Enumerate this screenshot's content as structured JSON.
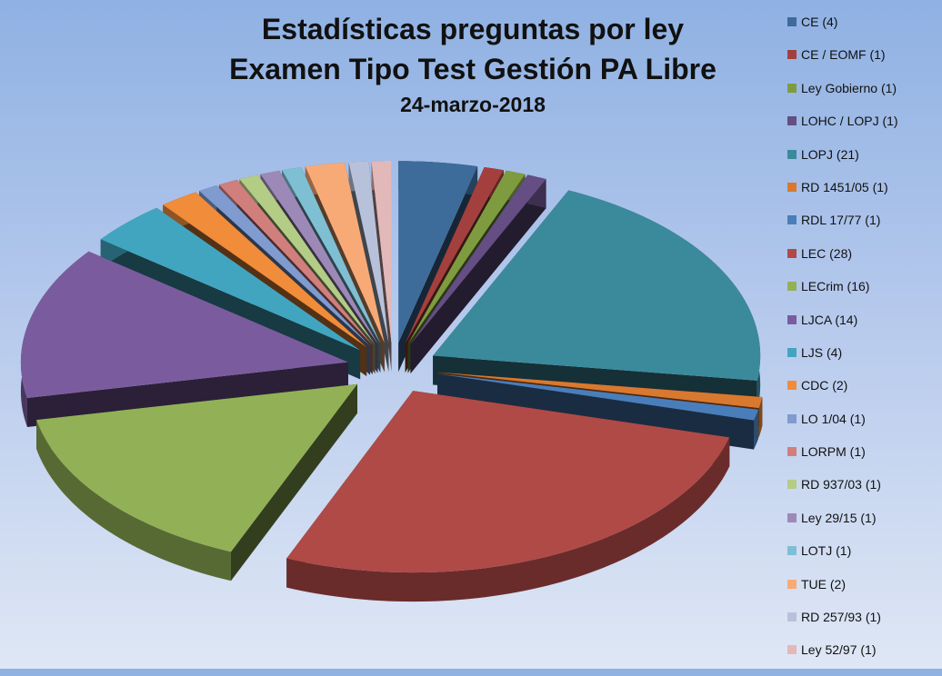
{
  "chart_data": {
    "type": "pie",
    "title": "Estadísticas preguntas por ley",
    "subtitle": "Examen Tipo Test Gestión PA Libre",
    "date": "24-marzo-2018",
    "legend_position": "right",
    "slices": [
      {
        "label": "CE (4)",
        "value": 4,
        "color": "#3e6c9a"
      },
      {
        "label": "CE / EOMF (1)",
        "value": 1,
        "color": "#a3403d"
      },
      {
        "label": "Ley Gobierno  (1)",
        "value": 1,
        "color": "#7e9c3f"
      },
      {
        "label": "LOHC / LOPJ  (1)",
        "value": 1,
        "color": "#644e83"
      },
      {
        "label": "LOPJ (21)",
        "value": 21,
        "color": "#3b8a9c"
      },
      {
        "label": "RD 1451/05  (1)",
        "value": 1,
        "color": "#d9782f"
      },
      {
        "label": "RDL 17/77  (1)",
        "value": 1,
        "color": "#4a7ebb"
      },
      {
        "label": "LEC (28)",
        "value": 28,
        "color": "#b04a47"
      },
      {
        "label": "LECrim (16)",
        "value": 16,
        "color": "#92b156"
      },
      {
        "label": "LJCA (14)",
        "value": 14,
        "color": "#7a5c9e"
      },
      {
        "label": "LJS (4)",
        "value": 4,
        "color": "#41a5c0"
      },
      {
        "label": "CDC (2)",
        "value": 2,
        "color": "#f08c3a"
      },
      {
        "label": "LO 1/04  (1)",
        "value": 1,
        "color": "#7f9bd0"
      },
      {
        "label": "LORPM (1)",
        "value": 1,
        "color": "#d07f7d"
      },
      {
        "label": "RD 937/03  (1)",
        "value": 1,
        "color": "#b3cc86"
      },
      {
        "label": "Ley 29/15  (1)",
        "value": 1,
        "color": "#9d89b8"
      },
      {
        "label": "LOTJ (1)",
        "value": 1,
        "color": "#7ebfd3"
      },
      {
        "label": "TUE (2)",
        "value": 2,
        "color": "#f8aa76"
      },
      {
        "label": "RD 257/93  (1)",
        "value": 1,
        "color": "#b7c2da"
      },
      {
        "label": "Ley 52/97  (1)",
        "value": 1,
        "color": "#e3b8b8"
      }
    ]
  }
}
